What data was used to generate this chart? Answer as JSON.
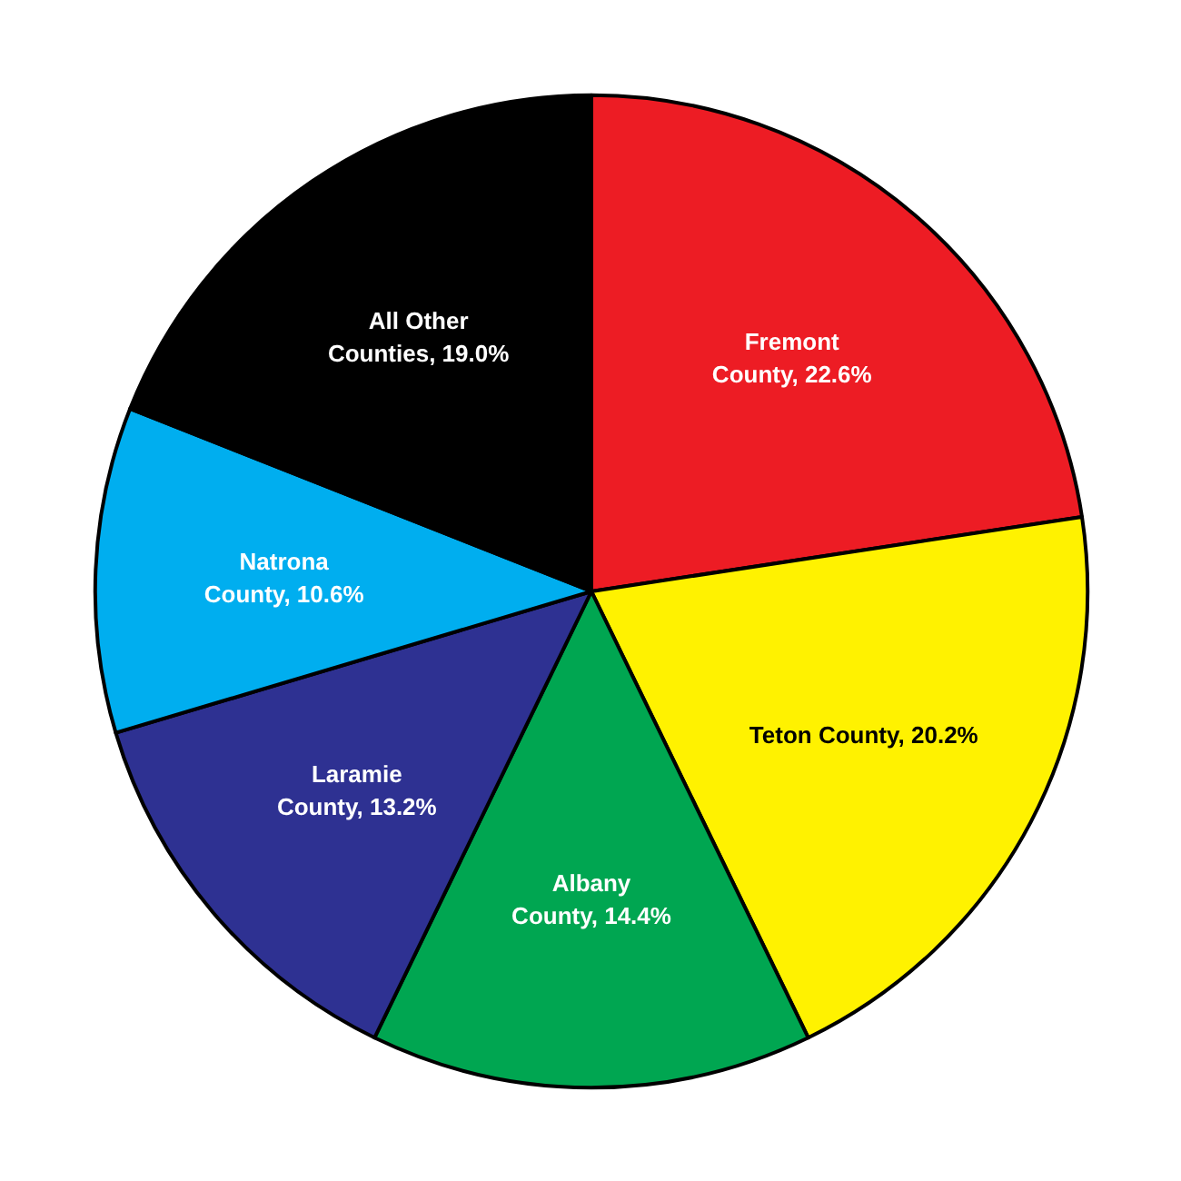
{
  "chart_data": {
    "type": "pie",
    "categories": [
      "Fremont County",
      "Teton County",
      "Albany County",
      "Laramie County",
      "Natrona County",
      "All Other Counties"
    ],
    "values": [
      22.6,
      20.2,
      14.4,
      13.2,
      10.6,
      19.0
    ],
    "value_labels": [
      "22.6%",
      "20.2%",
      "14.4%",
      "13.2%",
      "10.6%",
      "19.0%"
    ],
    "colors": [
      "#ed1c24",
      "#fff200",
      "#00a651",
      "#2e3192",
      "#00aeef",
      "#000000"
    ]
  }
}
